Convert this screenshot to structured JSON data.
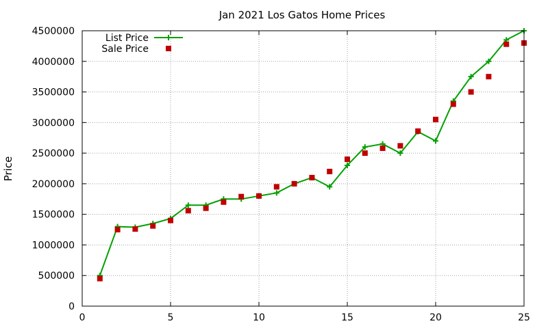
{
  "chart_data": {
    "type": "line",
    "title": "Jan 2021 Los Gatos Home Prices",
    "xlabel": "",
    "ylabel": "Price",
    "xlim": [
      0,
      25
    ],
    "ylim": [
      0,
      4500000
    ],
    "x_ticks": [
      0,
      5,
      10,
      15,
      20,
      25
    ],
    "y_ticks": [
      0,
      500000,
      1000000,
      1500000,
      2000000,
      2500000,
      3000000,
      3500000,
      4000000,
      4500000
    ],
    "grid": true,
    "legend_position": "top-left",
    "x": [
      1,
      2,
      3,
      4,
      5,
      6,
      7,
      8,
      9,
      10,
      11,
      12,
      13,
      14,
      15,
      16,
      17,
      18,
      19,
      20,
      21,
      22,
      23,
      24,
      25
    ],
    "series": [
      {
        "name": "List Price",
        "style": "line-with-plus-markers",
        "color": "#00a000",
        "values": [
          500000,
          1300000,
          1290000,
          1350000,
          1430000,
          1650000,
          1650000,
          1750000,
          1750000,
          1800000,
          1850000,
          2000000,
          2100000,
          1950000,
          2300000,
          2600000,
          2650000,
          2500000,
          2850000,
          2700000,
          3350000,
          3750000,
          4000000,
          4350000,
          4500000
        ]
      },
      {
        "name": "Sale Price",
        "style": "square-markers",
        "color": "#c00000",
        "values": [
          450000,
          1250000,
          1260000,
          1310000,
          1400000,
          1560000,
          1600000,
          1700000,
          1790000,
          1800000,
          1950000,
          2000000,
          2100000,
          2200000,
          2400000,
          2500000,
          2580000,
          2620000,
          2860000,
          3050000,
          3300000,
          3500000,
          3750000,
          4280000,
          4300000
        ]
      }
    ]
  }
}
